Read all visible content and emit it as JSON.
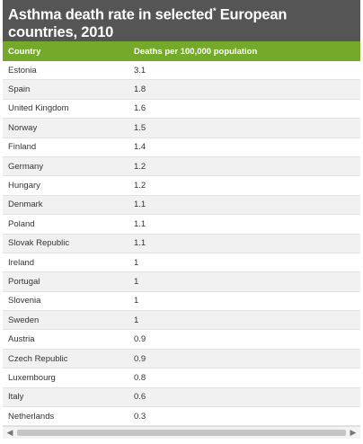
{
  "title": "Asthma death rate in selected* European countries, 2010",
  "title_main": "Asthma death rate in selected",
  "title_mark": "*",
  "title_rest": " European countries, 2010",
  "header": {
    "country": "Country",
    "value": "Deaths per 100,000 population"
  },
  "chart_data": {
    "type": "table",
    "title": "Asthma death rate in selected* European countries, 2010",
    "columns": [
      "Country",
      "Deaths per 100,000 population"
    ],
    "rows": [
      {
        "country": "Estonia",
        "value": "3.1"
      },
      {
        "country": "Spain",
        "value": "1.8"
      },
      {
        "country": "United Kingdom",
        "value": "1.6"
      },
      {
        "country": "Norway",
        "value": "1.5"
      },
      {
        "country": "Finland",
        "value": "1.4"
      },
      {
        "country": "Germany",
        "value": "1.2"
      },
      {
        "country": "Hungary",
        "value": "1.2"
      },
      {
        "country": "Denmark",
        "value": "1.1"
      },
      {
        "country": "Poland",
        "value": "1.1"
      },
      {
        "country": "Slovak Republic",
        "value": "1.1"
      },
      {
        "country": "Ireland",
        "value": "1"
      },
      {
        "country": "Portugal",
        "value": "1"
      },
      {
        "country": "Slovenia",
        "value": "1"
      },
      {
        "country": "Sweden",
        "value": "1"
      },
      {
        "country": "Austria",
        "value": "0.9"
      },
      {
        "country": "Czech Republic",
        "value": "0.9"
      },
      {
        "country": "Luxembourg",
        "value": "0.8"
      },
      {
        "country": "Italy",
        "value": "0.6"
      },
      {
        "country": "Netherlands",
        "value": "0.3"
      }
    ]
  },
  "colors": {
    "title_bg": "#555555",
    "header_bg": "#74a92a",
    "row_alt": "#f1f1f1"
  },
  "scrollbar": {
    "left_icon": "arrow-left-icon",
    "right_icon": "arrow-right-icon"
  }
}
